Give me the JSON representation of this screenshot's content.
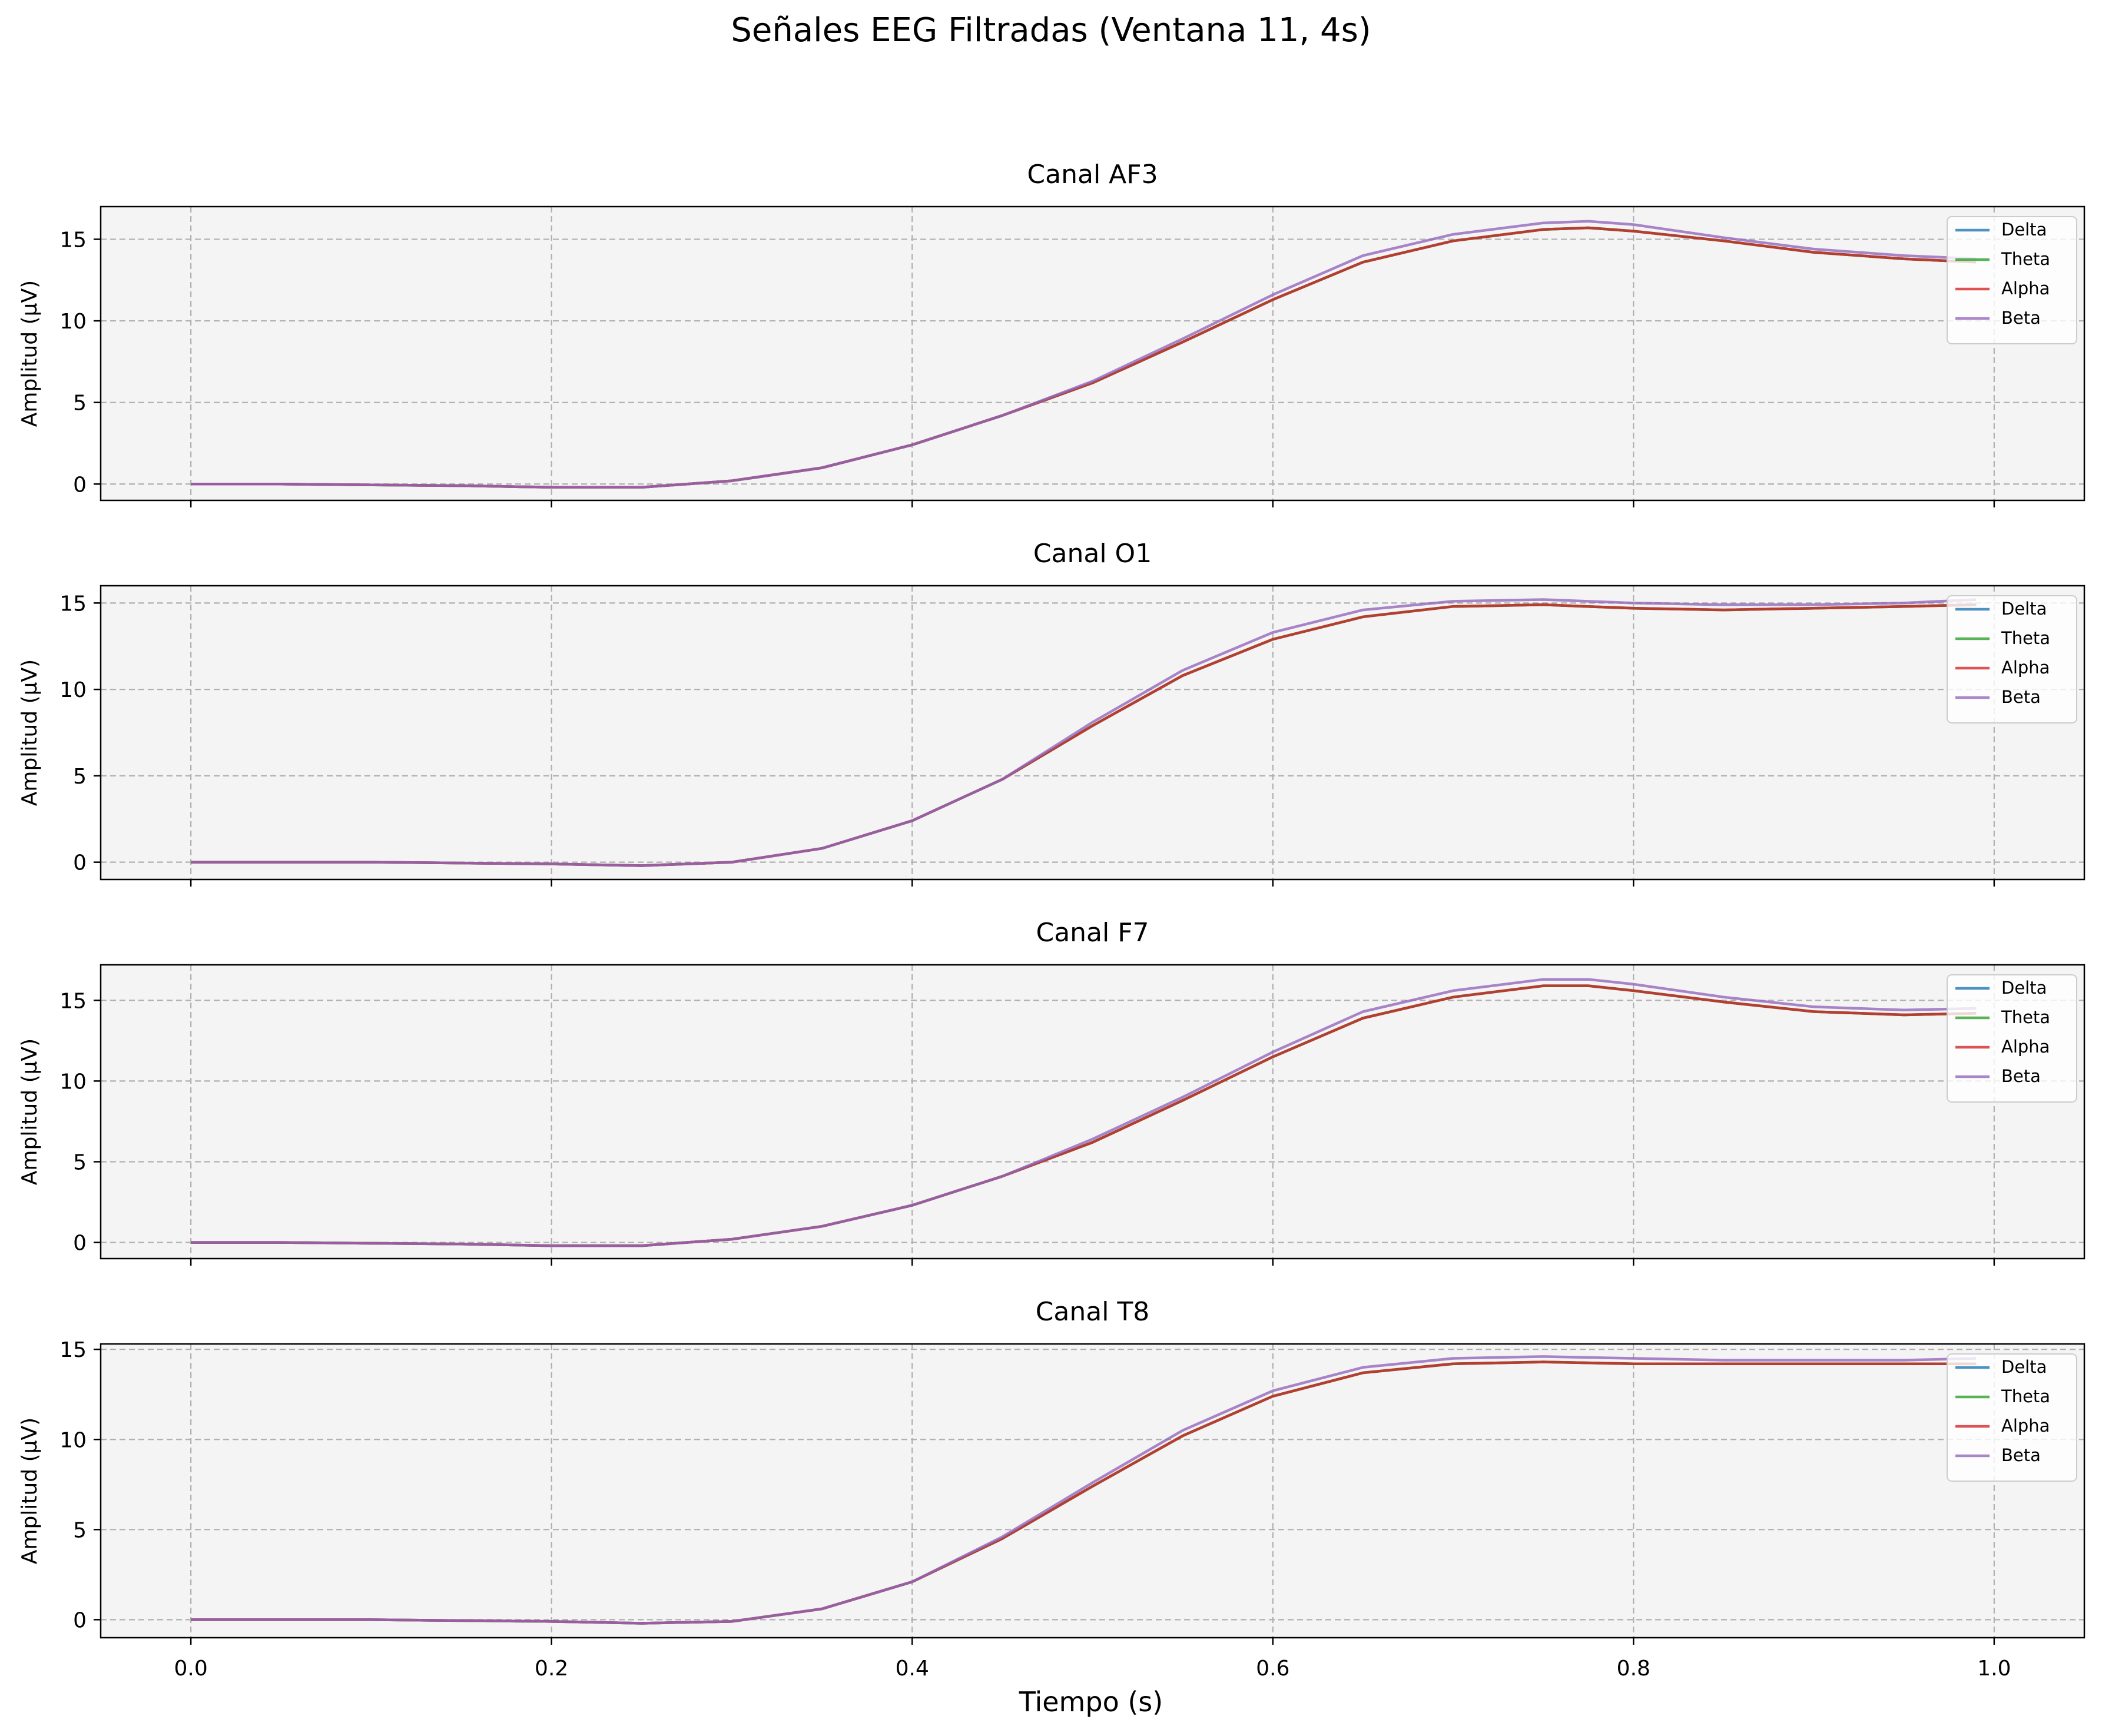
{
  "figure": {
    "suptitle": "Señales EEG Filtradas (Ventana 11, 4s)",
    "xlabel": "Tiempo (s)"
  },
  "chart_data": [
    {
      "type": "line",
      "title": "Canal AF3",
      "xlabel": "",
      "ylabel": "Amplitud (µV)",
      "xlim": [
        -0.05,
        1.05
      ],
      "ylim": [
        -1,
        17
      ],
      "xticks": [
        0.0,
        0.2,
        0.4,
        0.6,
        0.8,
        1.0
      ],
      "xtick_labels_visible": false,
      "yticks": [
        0,
        5,
        10,
        15
      ],
      "grid": true,
      "legend": "top-right",
      "x": [
        0,
        0.05,
        0.1,
        0.15,
        0.2,
        0.25,
        0.3,
        0.35,
        0.4,
        0.45,
        0.5,
        0.55,
        0.6,
        0.65,
        0.7,
        0.75,
        0.775,
        0.8,
        0.85,
        0.9,
        0.95,
        0.99
      ],
      "series": [
        {
          "name": "Delta",
          "color": "#1f77b4",
          "values": [
            0,
            0,
            -0.05,
            -0.1,
            -0.2,
            -0.2,
            0.2,
            1.0,
            2.4,
            4.2,
            6.2,
            8.7,
            11.3,
            13.6,
            14.9,
            15.6,
            15.7,
            15.5,
            14.9,
            14.2,
            13.8,
            13.6
          ]
        },
        {
          "name": "Theta",
          "color": "#2ca02c",
          "values": [
            0,
            0,
            -0.05,
            -0.1,
            -0.2,
            -0.2,
            0.2,
            1.0,
            2.4,
            4.2,
            6.2,
            8.7,
            11.3,
            13.6,
            14.9,
            15.6,
            15.7,
            15.5,
            14.9,
            14.2,
            13.8,
            13.6
          ]
        },
        {
          "name": "Alpha",
          "color": "#d62728",
          "values": [
            0,
            0,
            -0.05,
            -0.1,
            -0.2,
            -0.2,
            0.2,
            1.0,
            2.4,
            4.2,
            6.2,
            8.7,
            11.3,
            13.6,
            14.9,
            15.6,
            15.7,
            15.5,
            14.9,
            14.2,
            13.8,
            13.6
          ]
        },
        {
          "name": "Beta",
          "color": "#9467bd",
          "values": [
            0,
            0,
            -0.05,
            -0.1,
            -0.2,
            -0.2,
            0.2,
            1.0,
            2.4,
            4.2,
            6.3,
            8.9,
            11.6,
            14.0,
            15.3,
            16.0,
            16.1,
            15.9,
            15.1,
            14.4,
            14.0,
            13.8
          ]
        }
      ]
    },
    {
      "type": "line",
      "title": "Canal O1",
      "xlabel": "",
      "ylabel": "Amplitud (µV)",
      "xlim": [
        -0.05,
        1.05
      ],
      "ylim": [
        -1,
        16
      ],
      "xticks": [
        0.0,
        0.2,
        0.4,
        0.6,
        0.8,
        1.0
      ],
      "xtick_labels_visible": false,
      "yticks": [
        0,
        5,
        10,
        15
      ],
      "grid": true,
      "legend": "top-right",
      "x": [
        0,
        0.05,
        0.1,
        0.15,
        0.2,
        0.25,
        0.3,
        0.35,
        0.4,
        0.45,
        0.5,
        0.55,
        0.6,
        0.65,
        0.7,
        0.75,
        0.8,
        0.85,
        0.9,
        0.95,
        0.99
      ],
      "series": [
        {
          "name": "Delta",
          "color": "#1f77b4",
          "values": [
            0,
            0,
            0,
            -0.05,
            -0.1,
            -0.2,
            0,
            0.8,
            2.4,
            4.8,
            7.9,
            10.8,
            12.9,
            14.2,
            14.8,
            14.9,
            14.7,
            14.6,
            14.7,
            14.8,
            14.9
          ]
        },
        {
          "name": "Theta",
          "color": "#2ca02c",
          "values": [
            0,
            0,
            0,
            -0.05,
            -0.1,
            -0.2,
            0,
            0.8,
            2.4,
            4.8,
            7.9,
            10.8,
            12.9,
            14.2,
            14.8,
            14.9,
            14.7,
            14.6,
            14.7,
            14.8,
            14.9
          ]
        },
        {
          "name": "Alpha",
          "color": "#d62728",
          "values": [
            0,
            0,
            0,
            -0.05,
            -0.1,
            -0.2,
            0,
            0.8,
            2.4,
            4.8,
            7.9,
            10.8,
            12.9,
            14.2,
            14.8,
            14.9,
            14.7,
            14.6,
            14.7,
            14.8,
            14.9
          ]
        },
        {
          "name": "Beta",
          "color": "#9467bd",
          "values": [
            0,
            0,
            0,
            -0.05,
            -0.1,
            -0.2,
            0,
            0.8,
            2.4,
            4.8,
            8.1,
            11.1,
            13.3,
            14.6,
            15.1,
            15.2,
            15.0,
            14.9,
            14.9,
            15.0,
            15.2
          ]
        }
      ]
    },
    {
      "type": "line",
      "title": "Canal F7",
      "xlabel": "",
      "ylabel": "Amplitud (µV)",
      "xlim": [
        -0.05,
        1.05
      ],
      "ylim": [
        -1,
        17.2
      ],
      "xticks": [
        0.0,
        0.2,
        0.4,
        0.6,
        0.8,
        1.0
      ],
      "xtick_labels_visible": false,
      "yticks": [
        0,
        5,
        10,
        15
      ],
      "grid": true,
      "legend": "top-right",
      "x": [
        0,
        0.05,
        0.1,
        0.15,
        0.2,
        0.25,
        0.3,
        0.35,
        0.4,
        0.45,
        0.5,
        0.55,
        0.6,
        0.65,
        0.7,
        0.75,
        0.775,
        0.8,
        0.85,
        0.9,
        0.95,
        0.99
      ],
      "series": [
        {
          "name": "Delta",
          "color": "#1f77b4",
          "values": [
            0,
            0,
            -0.05,
            -0.1,
            -0.2,
            -0.2,
            0.2,
            1.0,
            2.3,
            4.1,
            6.2,
            8.8,
            11.5,
            13.9,
            15.2,
            15.9,
            15.9,
            15.6,
            14.9,
            14.3,
            14.1,
            14.2
          ]
        },
        {
          "name": "Theta",
          "color": "#2ca02c",
          "values": [
            0,
            0,
            -0.05,
            -0.1,
            -0.2,
            -0.2,
            0.2,
            1.0,
            2.3,
            4.1,
            6.2,
            8.8,
            11.5,
            13.9,
            15.2,
            15.9,
            15.9,
            15.6,
            14.9,
            14.3,
            14.1,
            14.2
          ]
        },
        {
          "name": "Alpha",
          "color": "#d62728",
          "values": [
            0,
            0,
            -0.05,
            -0.1,
            -0.2,
            -0.2,
            0.2,
            1.0,
            2.3,
            4.1,
            6.2,
            8.8,
            11.5,
            13.9,
            15.2,
            15.9,
            15.9,
            15.6,
            14.9,
            14.3,
            14.1,
            14.2
          ]
        },
        {
          "name": "Beta",
          "color": "#9467bd",
          "values": [
            0,
            0,
            -0.05,
            -0.1,
            -0.2,
            -0.2,
            0.2,
            1.0,
            2.3,
            4.1,
            6.4,
            9.0,
            11.8,
            14.3,
            15.6,
            16.3,
            16.3,
            16.0,
            15.2,
            14.6,
            14.4,
            14.5
          ]
        }
      ]
    },
    {
      "type": "line",
      "title": "Canal T8",
      "xlabel": "Tiempo (s)",
      "ylabel": "Amplitud (µV)",
      "xlim": [
        -0.05,
        1.05
      ],
      "ylim": [
        -1,
        15.3
      ],
      "xticks": [
        0.0,
        0.2,
        0.4,
        0.6,
        0.8,
        1.0
      ],
      "xtick_labels": [
        "0.0",
        "0.2",
        "0.4",
        "0.6",
        "0.8",
        "1.0"
      ],
      "xtick_labels_visible": true,
      "yticks": [
        0,
        5,
        10,
        15
      ],
      "grid": true,
      "legend": "top-right",
      "x": [
        0,
        0.05,
        0.1,
        0.15,
        0.2,
        0.25,
        0.3,
        0.35,
        0.4,
        0.45,
        0.5,
        0.55,
        0.6,
        0.65,
        0.7,
        0.75,
        0.8,
        0.85,
        0.9,
        0.95,
        0.99
      ],
      "series": [
        {
          "name": "Delta",
          "color": "#1f77b4",
          "values": [
            0,
            0,
            0,
            -0.05,
            -0.1,
            -0.2,
            -0.1,
            0.6,
            2.1,
            4.5,
            7.4,
            10.2,
            12.4,
            13.7,
            14.2,
            14.3,
            14.2,
            14.2,
            14.2,
            14.2,
            14.2
          ]
        },
        {
          "name": "Theta",
          "color": "#2ca02c",
          "values": [
            0,
            0,
            0,
            -0.05,
            -0.1,
            -0.2,
            -0.1,
            0.6,
            2.1,
            4.5,
            7.4,
            10.2,
            12.4,
            13.7,
            14.2,
            14.3,
            14.2,
            14.2,
            14.2,
            14.2,
            14.2
          ]
        },
        {
          "name": "Alpha",
          "color": "#d62728",
          "values": [
            0,
            0,
            0,
            -0.05,
            -0.1,
            -0.2,
            -0.1,
            0.6,
            2.1,
            4.5,
            7.4,
            10.2,
            12.4,
            13.7,
            14.2,
            14.3,
            14.2,
            14.2,
            14.2,
            14.2,
            14.2
          ]
        },
        {
          "name": "Beta",
          "color": "#9467bd",
          "values": [
            0,
            0,
            0,
            -0.05,
            -0.1,
            -0.2,
            -0.1,
            0.6,
            2.1,
            4.6,
            7.6,
            10.5,
            12.7,
            14.0,
            14.5,
            14.6,
            14.5,
            14.4,
            14.4,
            14.4,
            14.5
          ]
        }
      ]
    }
  ]
}
